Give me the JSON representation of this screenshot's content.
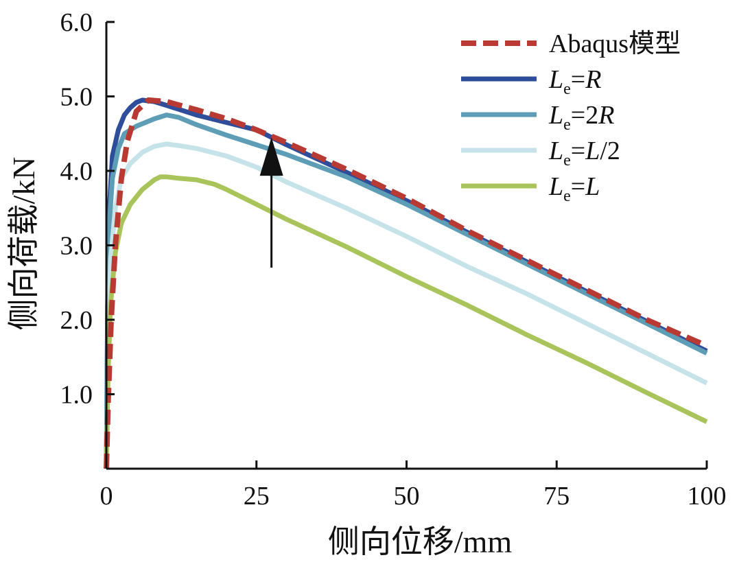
{
  "chart_data": {
    "type": "line",
    "xlabel": "侧向位移/mm",
    "ylabel": "侧向荷载/kN",
    "xlim": [
      0,
      100
    ],
    "ylim": [
      0,
      6.0
    ],
    "xticks": [
      "0",
      "25",
      "50",
      "75",
      "100"
    ],
    "yticks": [
      "1.0",
      "2.0",
      "3.0",
      "4.0",
      "5.0",
      "6.0"
    ],
    "grid": false,
    "legend_position": "top-right",
    "series": [
      {
        "key": "abaqus",
        "name": "Abaqus模型",
        "color": "#b83a32",
        "dashed": true,
        "x": [
          0,
          0.3,
          0.8,
          1.5,
          2.5,
          3.5,
          5,
          7,
          10,
          15,
          20,
          25,
          30,
          35,
          40,
          50,
          60,
          70,
          80,
          90,
          100
        ],
        "y": [
          0,
          0.9,
          2.0,
          3.0,
          3.9,
          4.4,
          4.8,
          4.95,
          4.93,
          4.82,
          4.7,
          4.55,
          4.38,
          4.2,
          4.02,
          3.63,
          3.2,
          2.8,
          2.4,
          2.0,
          1.65
        ]
      },
      {
        "key": "le_r",
        "name_base": "L",
        "name_sub": "e",
        "name_eq": "=",
        "name_value": "R",
        "color": "#2e4d9a",
        "dashed": false,
        "x": [
          0,
          0.2,
          0.5,
          1,
          2,
          3,
          4,
          5,
          6,
          8,
          10,
          15,
          20,
          25,
          30,
          40,
          50,
          60,
          70,
          80,
          90,
          100
        ],
        "y": [
          0,
          2.2,
          3.5,
          4.2,
          4.55,
          4.75,
          4.85,
          4.92,
          4.95,
          4.93,
          4.88,
          4.75,
          4.65,
          4.55,
          4.35,
          3.98,
          3.6,
          3.18,
          2.78,
          2.38,
          1.98,
          1.58
        ]
      },
      {
        "key": "le_2r",
        "name_base": "L",
        "name_sub": "e",
        "name_eq": "=",
        "name_value": "2R",
        "color": "#5e9db6",
        "dashed": false,
        "x": [
          0,
          0.2,
          0.5,
          1,
          2,
          3,
          5,
          8,
          10,
          12,
          15,
          20,
          25,
          30,
          40,
          50,
          60,
          70,
          80,
          90,
          100
        ],
        "y": [
          0,
          2.0,
          3.3,
          3.9,
          4.3,
          4.5,
          4.6,
          4.7,
          4.75,
          4.72,
          4.62,
          4.48,
          4.35,
          4.22,
          3.92,
          3.55,
          3.15,
          2.75,
          2.35,
          1.95,
          1.55
        ]
      },
      {
        "key": "le_l2",
        "name_base": "L",
        "name_sub": "e",
        "name_eq": "=",
        "name_value": "L/2",
        "color": "#c6e3ea",
        "dashed": false,
        "x": [
          0,
          0.3,
          0.7,
          1.5,
          2.5,
          4,
          6,
          8,
          10,
          12,
          15,
          20,
          25,
          30,
          40,
          50,
          60,
          70,
          80,
          90,
          100
        ],
        "y": [
          0,
          1.6,
          2.8,
          3.5,
          3.9,
          4.1,
          4.25,
          4.33,
          4.36,
          4.34,
          4.3,
          4.2,
          4.05,
          3.85,
          3.5,
          3.12,
          2.72,
          2.35,
          1.95,
          1.55,
          1.15
        ]
      },
      {
        "key": "le_l",
        "name_base": "L",
        "name_sub": "e",
        "name_eq": "=",
        "name_value": "L",
        "color": "#a9c45a",
        "dashed": false,
        "x": [
          0,
          0.3,
          0.7,
          1.5,
          2.5,
          4,
          6,
          8,
          9,
          10,
          12,
          15,
          18,
          20,
          25,
          30,
          40,
          50,
          60,
          70,
          80,
          90,
          100
        ],
        "y": [
          0,
          1.3,
          2.2,
          2.9,
          3.3,
          3.55,
          3.75,
          3.88,
          3.92,
          3.92,
          3.9,
          3.88,
          3.82,
          3.75,
          3.55,
          3.35,
          2.98,
          2.58,
          2.2,
          1.8,
          1.42,
          1.02,
          0.63
        ]
      }
    ],
    "annotation": {
      "type": "arrow",
      "x": 27.5,
      "y_from": 2.7,
      "y_to": 4.45,
      "color": "#111111"
    }
  }
}
